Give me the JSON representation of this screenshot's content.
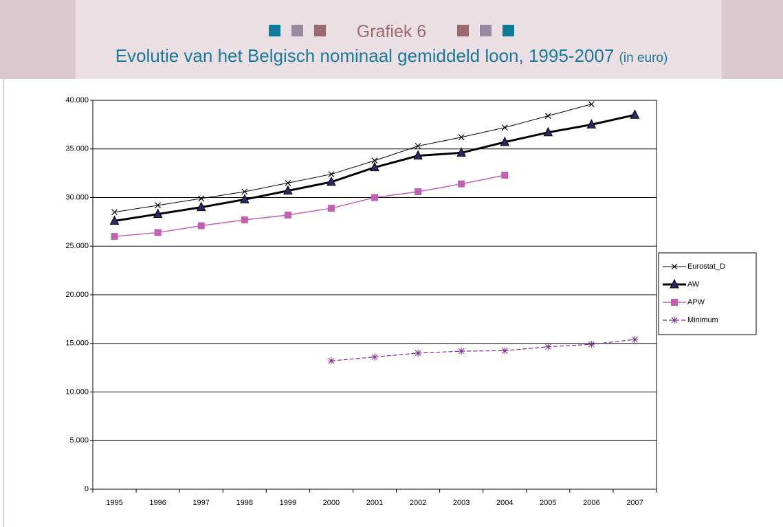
{
  "header": {
    "title": "Grafiek 6",
    "subtitle": "Evolutie van het Belgisch nominaal gemiddeld loon, 1995-2007",
    "subtitle_unit": "(in euro)"
  },
  "chart_data": {
    "type": "line",
    "categories": [
      "1995",
      "1996",
      "1997",
      "1998",
      "1999",
      "2000",
      "2001",
      "2002",
      "2003",
      "2004",
      "2005",
      "2006",
      "2007"
    ],
    "series": [
      {
        "name": "Eurostat_D",
        "color": "#000000",
        "marker": "x",
        "width": 1,
        "dashed": false,
        "values": [
          28500,
          29200,
          29900,
          30600,
          31500,
          32400,
          33800,
          35300,
          36200,
          37200,
          38400,
          39600,
          null
        ]
      },
      {
        "name": "AW",
        "color": "#000000",
        "marker_color": "#2a2a6a",
        "marker": "triangle",
        "width": 3,
        "dashed": false,
        "values": [
          27600,
          28300,
          29000,
          29800,
          30700,
          31600,
          33100,
          34300,
          34600,
          35700,
          36700,
          37500,
          38500
        ]
      },
      {
        "name": "APW",
        "color": "#c060b0",
        "marker": "square",
        "width": 1.5,
        "dashed": false,
        "values": [
          26000,
          26400,
          27100,
          27700,
          28200,
          28900,
          30000,
          30600,
          31400,
          32300,
          null,
          null,
          null
        ]
      },
      {
        "name": "Minimum",
        "color": "#7a2a8a",
        "marker": "star",
        "width": 1.2,
        "dashed": true,
        "values": [
          null,
          null,
          null,
          null,
          null,
          13200,
          13600,
          14000,
          14200,
          14250,
          14650,
          14900,
          15400
        ]
      }
    ],
    "ylim": [
      0,
      40000
    ],
    "yticks": [
      0,
      {
        "value": 5000,
        "label": "5.000"
      },
      {
        "value": 10000,
        "label": "10.000"
      },
      {
        "value": 15000,
        "label": "15.000"
      },
      {
        "value": 20000,
        "label": "20.000"
      },
      {
        "value": 25000,
        "label": "25.000"
      },
      {
        "value": 30000,
        "label": "30.000"
      },
      {
        "value": 35000,
        "label": "35.000"
      },
      {
        "value": 40000,
        "label": "40.000"
      }
    ],
    "grid": true,
    "legend": "right"
  }
}
